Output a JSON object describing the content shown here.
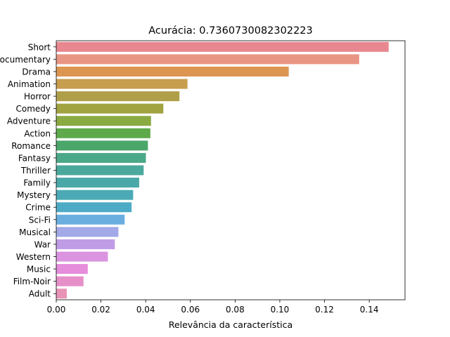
{
  "chart_data": {
    "type": "bar",
    "orientation": "horizontal",
    "title": "Acurácia: 0.7360730082302223",
    "xlabel": "Relevância da característica",
    "ylabel": "",
    "xlim": [
      0,
      0.156
    ],
    "xticks": [
      0.0,
      0.02,
      0.04,
      0.06,
      0.08,
      0.1,
      0.12,
      0.14
    ],
    "xtick_labels": [
      "0.00",
      "0.02",
      "0.04",
      "0.06",
      "0.08",
      "0.10",
      "0.12",
      "0.14"
    ],
    "grid": false,
    "categories": [
      "Short",
      "Documentary",
      "Drama",
      "Animation",
      "Horror",
      "Comedy",
      "Adventure",
      "Action",
      "Romance",
      "Fantasy",
      "Thriller",
      "Family",
      "Mystery",
      "Crime",
      "Sci-Fi",
      "Musical",
      "War",
      "Western",
      "Music",
      "Film-Noir",
      "Adult"
    ],
    "values": [
      0.1487,
      0.1355,
      0.104,
      0.0587,
      0.0551,
      0.0479,
      0.0424,
      0.0421,
      0.041,
      0.0401,
      0.0391,
      0.0371,
      0.0344,
      0.0337,
      0.0306,
      0.0278,
      0.0262,
      0.0231,
      0.0141,
      0.0122,
      0.0047
    ],
    "colors": [
      "#e8878f",
      "#e99584",
      "#dd9552",
      "#c79d4e",
      "#b09f49",
      "#a1a341",
      "#8aab41",
      "#5ea94a",
      "#4ba66a",
      "#4ba889",
      "#4ba89c",
      "#4aa9a8",
      "#4baab5",
      "#4eabc6",
      "#6aaee0",
      "#a2a9e6",
      "#c09ce7",
      "#db94e0",
      "#e68ddc",
      "#e68fc8",
      "#e893b7"
    ]
  }
}
